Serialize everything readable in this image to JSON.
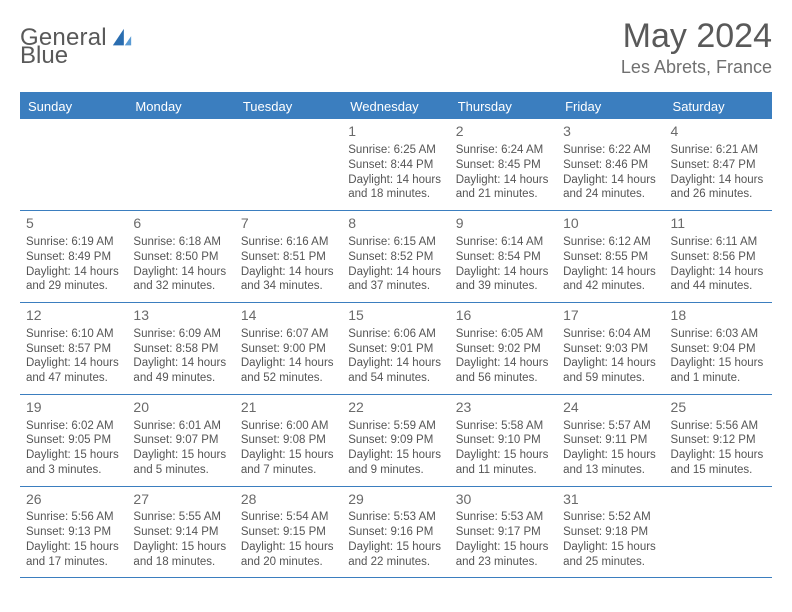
{
  "logo": {
    "text_left": "General",
    "text_right": "Blue",
    "accent_color": "#2a6db0",
    "text_color": "#595959"
  },
  "header": {
    "title": "May 2024",
    "location": "Les Abrets, France"
  },
  "style": {
    "header_bg": "#3b7ebf",
    "header_text": "#ffffff",
    "border_color": "#3b7ebf",
    "body_text": "#555555",
    "daynum_color": "#6a6a6a",
    "page_bg": "#ffffff",
    "title_fontsize": 34,
    "location_fontsize": 18,
    "weekday_fontsize": 13,
    "cell_fontsize": 11.5
  },
  "weekdays": [
    "Sunday",
    "Monday",
    "Tuesday",
    "Wednesday",
    "Thursday",
    "Friday",
    "Saturday"
  ],
  "weeks": [
    [
      {
        "day": "",
        "sunrise": "",
        "sunset": "",
        "daylight": ""
      },
      {
        "day": "",
        "sunrise": "",
        "sunset": "",
        "daylight": ""
      },
      {
        "day": "",
        "sunrise": "",
        "sunset": "",
        "daylight": ""
      },
      {
        "day": "1",
        "sunrise": "Sunrise: 6:25 AM",
        "sunset": "Sunset: 8:44 PM",
        "daylight": "Daylight: 14 hours and 18 minutes."
      },
      {
        "day": "2",
        "sunrise": "Sunrise: 6:24 AM",
        "sunset": "Sunset: 8:45 PM",
        "daylight": "Daylight: 14 hours and 21 minutes."
      },
      {
        "day": "3",
        "sunrise": "Sunrise: 6:22 AM",
        "sunset": "Sunset: 8:46 PM",
        "daylight": "Daylight: 14 hours and 24 minutes."
      },
      {
        "day": "4",
        "sunrise": "Sunrise: 6:21 AM",
        "sunset": "Sunset: 8:47 PM",
        "daylight": "Daylight: 14 hours and 26 minutes."
      }
    ],
    [
      {
        "day": "5",
        "sunrise": "Sunrise: 6:19 AM",
        "sunset": "Sunset: 8:49 PM",
        "daylight": "Daylight: 14 hours and 29 minutes."
      },
      {
        "day": "6",
        "sunrise": "Sunrise: 6:18 AM",
        "sunset": "Sunset: 8:50 PM",
        "daylight": "Daylight: 14 hours and 32 minutes."
      },
      {
        "day": "7",
        "sunrise": "Sunrise: 6:16 AM",
        "sunset": "Sunset: 8:51 PM",
        "daylight": "Daylight: 14 hours and 34 minutes."
      },
      {
        "day": "8",
        "sunrise": "Sunrise: 6:15 AM",
        "sunset": "Sunset: 8:52 PM",
        "daylight": "Daylight: 14 hours and 37 minutes."
      },
      {
        "day": "9",
        "sunrise": "Sunrise: 6:14 AM",
        "sunset": "Sunset: 8:54 PM",
        "daylight": "Daylight: 14 hours and 39 minutes."
      },
      {
        "day": "10",
        "sunrise": "Sunrise: 6:12 AM",
        "sunset": "Sunset: 8:55 PM",
        "daylight": "Daylight: 14 hours and 42 minutes."
      },
      {
        "day": "11",
        "sunrise": "Sunrise: 6:11 AM",
        "sunset": "Sunset: 8:56 PM",
        "daylight": "Daylight: 14 hours and 44 minutes."
      }
    ],
    [
      {
        "day": "12",
        "sunrise": "Sunrise: 6:10 AM",
        "sunset": "Sunset: 8:57 PM",
        "daylight": "Daylight: 14 hours and 47 minutes."
      },
      {
        "day": "13",
        "sunrise": "Sunrise: 6:09 AM",
        "sunset": "Sunset: 8:58 PM",
        "daylight": "Daylight: 14 hours and 49 minutes."
      },
      {
        "day": "14",
        "sunrise": "Sunrise: 6:07 AM",
        "sunset": "Sunset: 9:00 PM",
        "daylight": "Daylight: 14 hours and 52 minutes."
      },
      {
        "day": "15",
        "sunrise": "Sunrise: 6:06 AM",
        "sunset": "Sunset: 9:01 PM",
        "daylight": "Daylight: 14 hours and 54 minutes."
      },
      {
        "day": "16",
        "sunrise": "Sunrise: 6:05 AM",
        "sunset": "Sunset: 9:02 PM",
        "daylight": "Daylight: 14 hours and 56 minutes."
      },
      {
        "day": "17",
        "sunrise": "Sunrise: 6:04 AM",
        "sunset": "Sunset: 9:03 PM",
        "daylight": "Daylight: 14 hours and 59 minutes."
      },
      {
        "day": "18",
        "sunrise": "Sunrise: 6:03 AM",
        "sunset": "Sunset: 9:04 PM",
        "daylight": "Daylight: 15 hours and 1 minute."
      }
    ],
    [
      {
        "day": "19",
        "sunrise": "Sunrise: 6:02 AM",
        "sunset": "Sunset: 9:05 PM",
        "daylight": "Daylight: 15 hours and 3 minutes."
      },
      {
        "day": "20",
        "sunrise": "Sunrise: 6:01 AM",
        "sunset": "Sunset: 9:07 PM",
        "daylight": "Daylight: 15 hours and 5 minutes."
      },
      {
        "day": "21",
        "sunrise": "Sunrise: 6:00 AM",
        "sunset": "Sunset: 9:08 PM",
        "daylight": "Daylight: 15 hours and 7 minutes."
      },
      {
        "day": "22",
        "sunrise": "Sunrise: 5:59 AM",
        "sunset": "Sunset: 9:09 PM",
        "daylight": "Daylight: 15 hours and 9 minutes."
      },
      {
        "day": "23",
        "sunrise": "Sunrise: 5:58 AM",
        "sunset": "Sunset: 9:10 PM",
        "daylight": "Daylight: 15 hours and 11 minutes."
      },
      {
        "day": "24",
        "sunrise": "Sunrise: 5:57 AM",
        "sunset": "Sunset: 9:11 PM",
        "daylight": "Daylight: 15 hours and 13 minutes."
      },
      {
        "day": "25",
        "sunrise": "Sunrise: 5:56 AM",
        "sunset": "Sunset: 9:12 PM",
        "daylight": "Daylight: 15 hours and 15 minutes."
      }
    ],
    [
      {
        "day": "26",
        "sunrise": "Sunrise: 5:56 AM",
        "sunset": "Sunset: 9:13 PM",
        "daylight": "Daylight: 15 hours and 17 minutes."
      },
      {
        "day": "27",
        "sunrise": "Sunrise: 5:55 AM",
        "sunset": "Sunset: 9:14 PM",
        "daylight": "Daylight: 15 hours and 18 minutes."
      },
      {
        "day": "28",
        "sunrise": "Sunrise: 5:54 AM",
        "sunset": "Sunset: 9:15 PM",
        "daylight": "Daylight: 15 hours and 20 minutes."
      },
      {
        "day": "29",
        "sunrise": "Sunrise: 5:53 AM",
        "sunset": "Sunset: 9:16 PM",
        "daylight": "Daylight: 15 hours and 22 minutes."
      },
      {
        "day": "30",
        "sunrise": "Sunrise: 5:53 AM",
        "sunset": "Sunset: 9:17 PM",
        "daylight": "Daylight: 15 hours and 23 minutes."
      },
      {
        "day": "31",
        "sunrise": "Sunrise: 5:52 AM",
        "sunset": "Sunset: 9:18 PM",
        "daylight": "Daylight: 15 hours and 25 minutes."
      },
      {
        "day": "",
        "sunrise": "",
        "sunset": "",
        "daylight": ""
      }
    ]
  ]
}
